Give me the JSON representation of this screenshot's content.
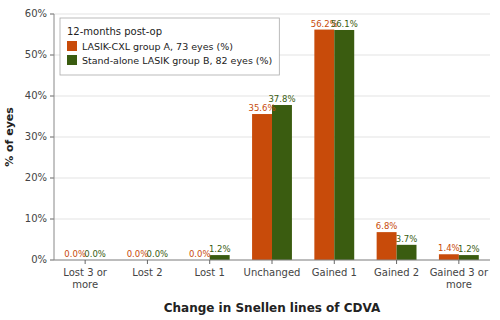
{
  "chart_data": {
    "type": "bar",
    "categories": [
      "Lost 3 or\nmore",
      "Lost 2",
      "Lost 1",
      "Unchanged",
      "Gained 1",
      "Gained 2",
      "Gained 3 or\nmore"
    ],
    "series": [
      {
        "name": "LASIK-CXL group A, 73 eyes (%)",
        "color": "#C84B0A",
        "values": [
          0.0,
          0.0,
          0.0,
          35.6,
          56.2,
          6.8,
          1.4
        ],
        "value_labels": [
          "0.0%",
          "0.0%",
          "0.0%",
          "35.6%",
          "56.2%",
          "6.8%",
          "1.4%"
        ]
      },
      {
        "name": "Stand-alone LASIK group B, 82 eyes (%)",
        "color": "#3A5C10",
        "values": [
          0.0,
          0.0,
          1.2,
          37.8,
          56.1,
          3.7,
          1.2
        ],
        "value_labels": [
          "0.0%",
          "0.0%",
          "1.2%",
          "37.8%",
          "56.1%",
          "3.7%",
          "1.2%"
        ]
      }
    ],
    "xlabel": "Change in Snellen lines of CDVA",
    "ylabel": "% of eyes",
    "ylim": [
      0,
      60
    ],
    "yticks": [
      {
        "value": 0,
        "label": "0%"
      },
      {
        "value": 10,
        "label": "10%"
      },
      {
        "value": 20,
        "label": "20%"
      },
      {
        "value": 30,
        "label": "30%"
      },
      {
        "value": 40,
        "label": "40%"
      },
      {
        "value": 50,
        "label": "50%"
      },
      {
        "value": 60,
        "label": "60%"
      }
    ],
    "grid": true,
    "data_labels": true,
    "legend": "upper left",
    "legend_title": "12-months post-op"
  }
}
